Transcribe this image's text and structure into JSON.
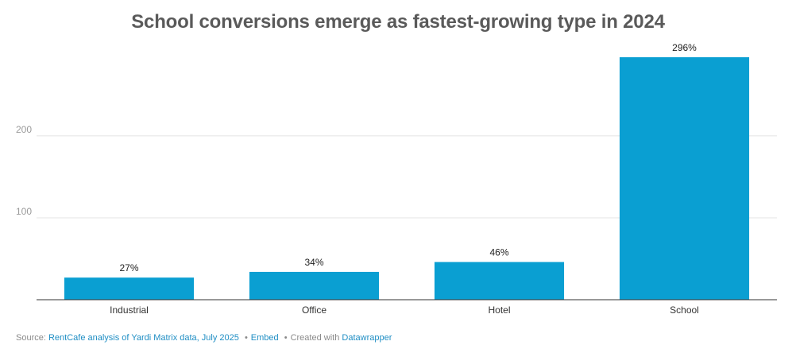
{
  "title": "School conversions emerge as fastest-growing type in 2024",
  "chart_data": {
    "type": "bar",
    "categories": [
      "Industrial",
      "Office",
      "Hotel",
      "School"
    ],
    "values": [
      27,
      34,
      46,
      296
    ],
    "value_labels": [
      "27%",
      "34%",
      "46%",
      "296%"
    ],
    "y_ticks": [
      100,
      200
    ],
    "ylim": [
      0,
      296
    ],
    "grid": true,
    "bar_color": "#0a9fd2"
  },
  "footer": {
    "source_prefix": "Source:",
    "source_link": "RentCafe analysis of Yardi Matrix data, July 2025",
    "embed": "Embed",
    "created_prefix": "Created with",
    "tool": "Datawrapper",
    "separator": "•"
  }
}
